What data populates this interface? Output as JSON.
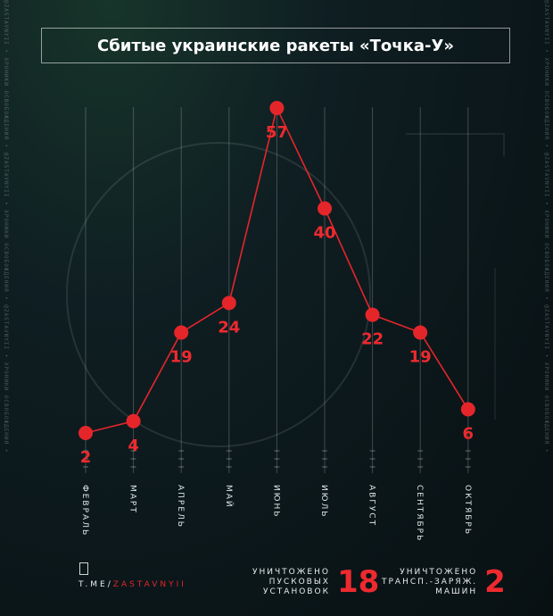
{
  "side_text": "@ZASTAVNYII • ХРОНИКИ ОСВОБОЖДЕНИЯ • @ZASTAVNYII • ХРОНИКИ ОСВОБОЖДЕНИЯ • @ZASTAVNYII • ХРОНИКИ ОСВОБОЖДЕНИЯ •",
  "title": "Сбитые украинские ракеты «Точка-У»",
  "chart_data": {
    "type": "line",
    "title": "Сбитые украинские ракеты «Точка-У»",
    "categories": [
      "ФЕВРАЛЬ",
      "МАРТ",
      "АПРЕЛЬ",
      "МАЙ",
      "ИЮНЬ",
      "ИЮЛЬ",
      "АВГУСТ",
      "СЕНТЯБРЬ",
      "ОКТЯБРЬ"
    ],
    "values": [
      2,
      4,
      19,
      24,
      57,
      40,
      22,
      19,
      6
    ],
    "line_color": "#e4262b",
    "grid": true
  },
  "footer": {
    "link_prefix": "T.ME/",
    "link_handle": "ZASTAVNYII"
  },
  "stats": [
    {
      "label_lines": [
        "УНИЧТОЖЕНО",
        "ПУСКОВЫХ",
        "УСТАНОВОК"
      ],
      "value": "18"
    },
    {
      "label_lines": [
        "УНИЧТОЖЕНО",
        "ТРАНСП.-ЗАРЯЖ.",
        "МАШИН"
      ],
      "value": "2"
    }
  ],
  "colors": {
    "accent": "#e4262b",
    "background": "#0d1a1d"
  }
}
